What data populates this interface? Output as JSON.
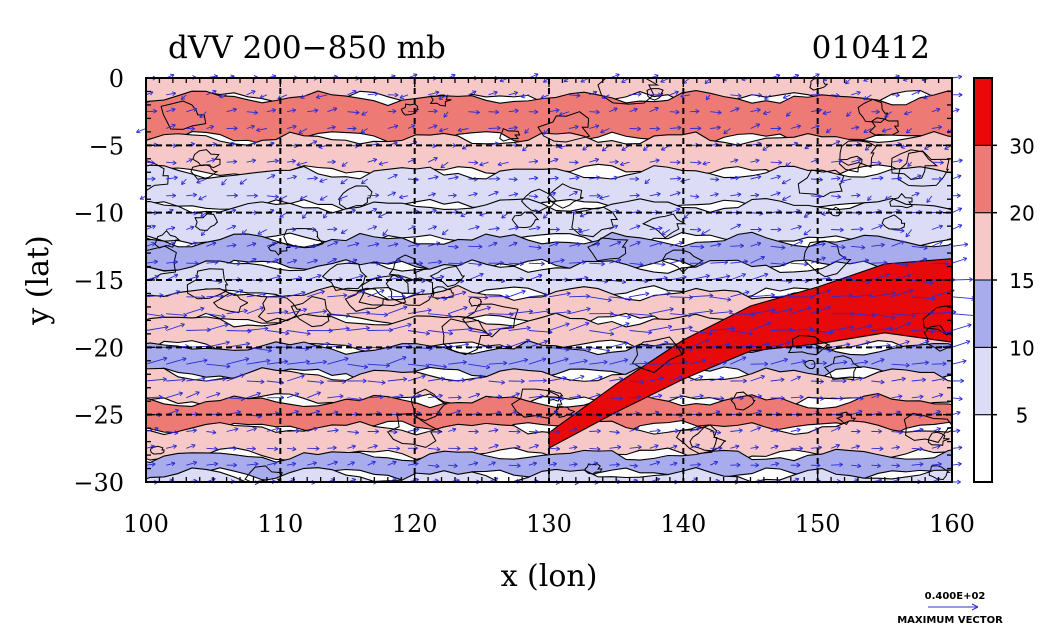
{
  "chart_data": {
    "type": "heatmap",
    "title_left": "dVV 200−850 mb",
    "title_right": "010412",
    "xlabel": "x (lon)",
    "ylabel": "y (lat)",
    "xlim": [
      100,
      160
    ],
    "ylim": [
      -30,
      0
    ],
    "x_ticks": [
      100,
      110,
      120,
      130,
      140,
      150,
      160
    ],
    "y_ticks": [
      0,
      -5,
      -10,
      -15,
      -20,
      -25,
      -30
    ],
    "x_tick_labels": [
      "100",
      "110",
      "120",
      "130",
      "140",
      "150",
      "160"
    ],
    "y_tick_labels": [
      "0",
      "−5",
      "−10",
      "−15",
      "−20",
      "−25",
      "−30"
    ],
    "grid": true,
    "colorbar": {
      "levels": [
        5,
        10,
        15,
        20,
        30
      ],
      "labels": [
        "5",
        "10",
        "15",
        "20",
        "30"
      ],
      "colors": [
        "#ffffff",
        "#dcdcf6",
        "#a8acec",
        "#f6c8c8",
        "#ee7a76",
        "#e80a0a"
      ]
    },
    "vector_legend": {
      "value_label": "0.400E+02",
      "caption": "MAXIMUM VECTOR"
    },
    "field_bands": [
      {
        "lat": 0,
        "level": 3
      },
      {
        "lat": -3,
        "level": 4
      },
      {
        "lat": -6,
        "level": 3
      },
      {
        "lat": -8,
        "level": 1
      },
      {
        "lat": -11,
        "level": 1
      },
      {
        "lat": -13,
        "level": 2
      },
      {
        "lat": -15,
        "level": 1
      },
      {
        "lat": -17,
        "level": 3
      },
      {
        "lat": -19,
        "level": 3
      },
      {
        "lat": -21,
        "level": 2
      },
      {
        "lat": -23,
        "level": 3
      },
      {
        "lat": -25,
        "level": 4
      },
      {
        "lat": -27,
        "level": 3
      },
      {
        "lat": -29,
        "level": 2
      },
      {
        "lat": -30,
        "level": 1
      }
    ],
    "jet_core": {
      "lon": [
        130,
        135,
        140,
        145,
        150,
        155,
        160
      ],
      "lat": [
        -27,
        -24,
        -21,
        -19,
        -18,
        -17,
        -17
      ],
      "level": 5
    },
    "mean_flow": {
      "u": 30,
      "v": -6
    }
  }
}
